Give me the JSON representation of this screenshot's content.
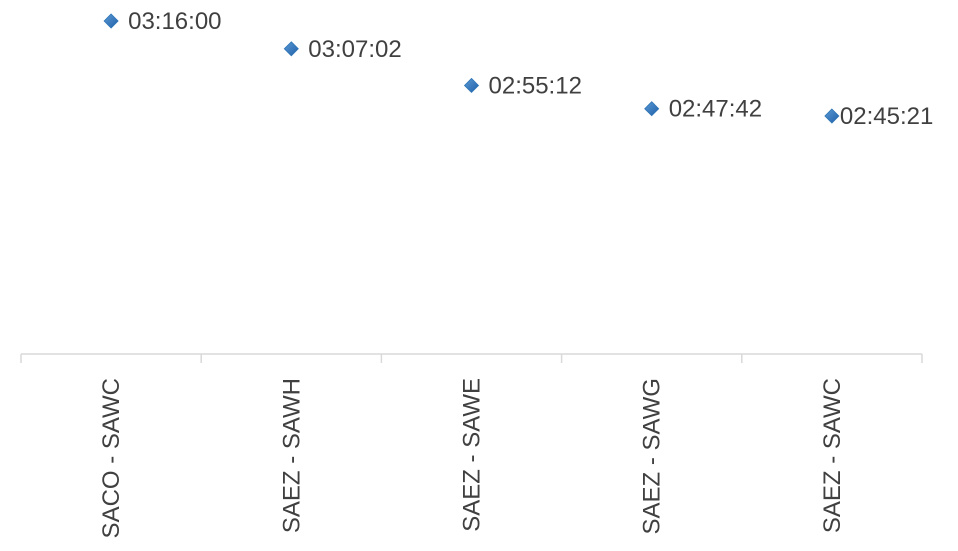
{
  "chart_data": {
    "type": "scatter",
    "categories": [
      "SACO - SAWC",
      "SAEZ - SAWH",
      "SAEZ - SAWE",
      "SAEZ - SAWG",
      "SAEZ - SAWC"
    ],
    "values_seconds": [
      11760,
      11222,
      10512,
      10062,
      9921
    ],
    "data_labels": [
      "03:16:00",
      "03:07:02",
      "02:55:12",
      "02:47:42",
      "02:45:21"
    ],
    "title": "",
    "xlabel": "",
    "ylabel": "",
    "marker": "diamond",
    "marker_color": "#2e75b6",
    "axis_color": "#d9d9d9",
    "label_color": "#404040",
    "grid": false,
    "legend": "none"
  }
}
